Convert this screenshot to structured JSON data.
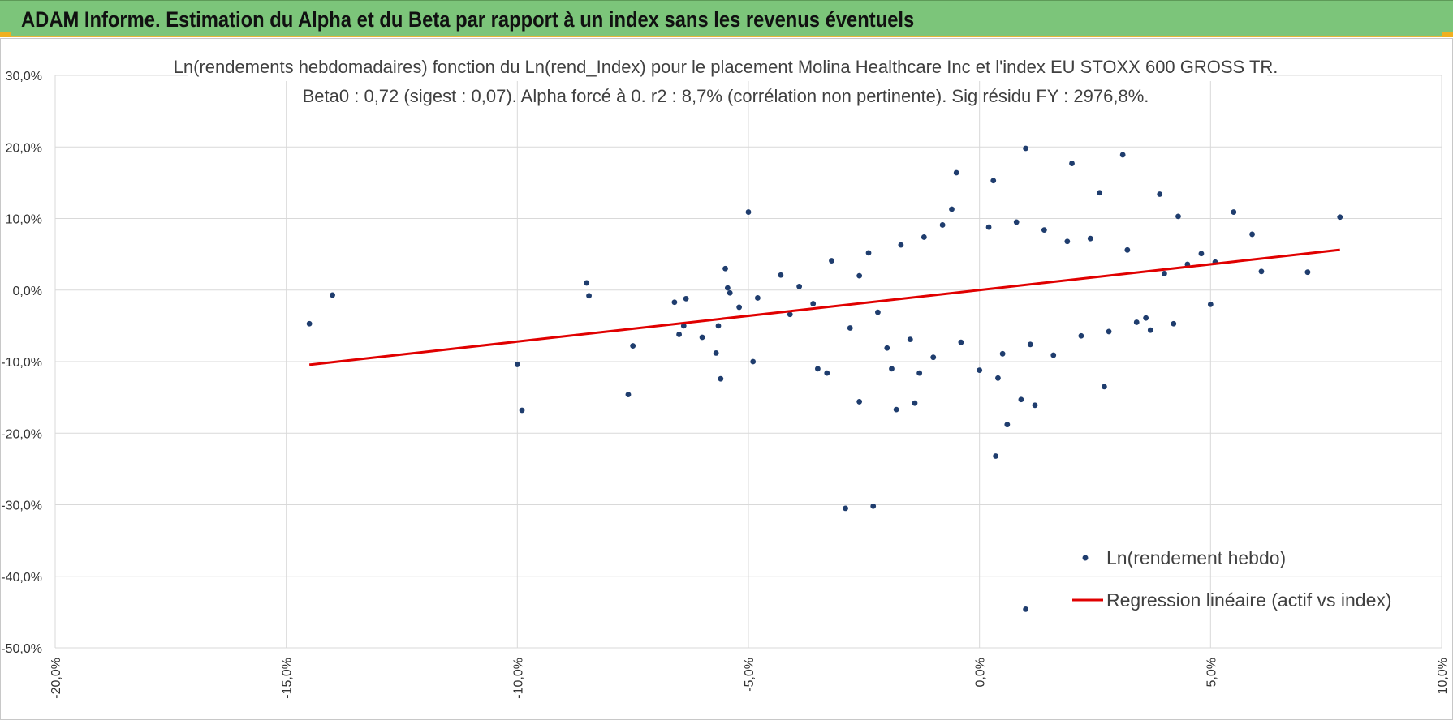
{
  "banner": {
    "title": "ADAM Informe. Estimation du Alpha et du Beta par rapport à un index sans les revenus éventuels",
    "color": "#7cc57a",
    "accent": "#f0b020"
  },
  "chart_data": {
    "type": "scatter",
    "title": "Ln(rendements hebdomadaires) fonction du Ln(rend_Index) pour le placement Molina Healthcare Inc et l'index EU STOXX 600 GROSS TR.",
    "subtitle": "Beta0 : 0,72 (sigest : 0,07).  Alpha forcé à 0. r2 : 8,7% (corrélation non pertinente). Sig résidu FY : 2976,8%.",
    "xlabel": "",
    "ylabel": "",
    "xlim": [
      -20,
      10
    ],
    "ylim": [
      -50,
      30
    ],
    "x_ticks": [
      "-20,0%",
      "-15,0%",
      "-10,0%",
      "-5,0%",
      "0,0%",
      "5,0%",
      "10,0%"
    ],
    "y_ticks": [
      "30,0%",
      "20,0%",
      "10,0%",
      "0,0%",
      "-10,0%",
      "-20,0%",
      "-30,0%",
      "-40,0%",
      "-50,0%"
    ],
    "grid": true,
    "legend_position": "bottom-right",
    "series": [
      {
        "name": "Ln(rendement hebdo)",
        "kind": "scatter",
        "color": "#1f3d6e",
        "points": [
          [
            -14.5,
            -4.7
          ],
          [
            -14.0,
            -0.7
          ],
          [
            -10.0,
            -10.4
          ],
          [
            -9.9,
            -16.8
          ],
          [
            -8.5,
            1.0
          ],
          [
            -8.45,
            -0.8
          ],
          [
            -7.6,
            -14.6
          ],
          [
            -7.5,
            -7.8
          ],
          [
            -6.6,
            -1.7
          ],
          [
            -6.5,
            -6.2
          ],
          [
            -6.4,
            -5.0
          ],
          [
            -6.35,
            -1.2
          ],
          [
            -6.0,
            -6.6
          ],
          [
            -5.7,
            -8.8
          ],
          [
            -5.65,
            -5.0
          ],
          [
            -5.6,
            -12.4
          ],
          [
            -5.5,
            3.0
          ],
          [
            -5.45,
            0.3
          ],
          [
            -5.4,
            -0.4
          ],
          [
            -5.0,
            10.9
          ],
          [
            -4.9,
            -10.0
          ],
          [
            -4.8,
            -1.1
          ],
          [
            -3.5,
            -11.0
          ],
          [
            -3.3,
            -11.6
          ],
          [
            -2.9,
            -30.5
          ],
          [
            -2.6,
            -15.6
          ],
          [
            -2.4,
            5.2
          ],
          [
            -2.3,
            -30.2
          ],
          [
            -1.9,
            -11.0
          ],
          [
            -1.8,
            -16.7
          ],
          [
            -1.4,
            -15.8
          ],
          [
            -1.3,
            -11.6
          ],
          [
            -0.5,
            16.4
          ],
          [
            -0.6,
            11.3
          ],
          [
            0.0,
            -11.2
          ],
          [
            0.3,
            15.3
          ],
          [
            0.35,
            -23.2
          ],
          [
            0.4,
            -12.3
          ],
          [
            0.6,
            -18.8
          ],
          [
            0.9,
            -15.3
          ],
          [
            1.0,
            19.8
          ],
          [
            1.0,
            -44.6
          ],
          [
            1.2,
            -16.1
          ],
          [
            2.0,
            17.7
          ],
          [
            2.6,
            13.6
          ],
          [
            2.7,
            -13.5
          ],
          [
            3.1,
            18.9
          ],
          [
            3.7,
            -5.6
          ],
          [
            3.9,
            13.4
          ],
          [
            4.2,
            -4.7
          ],
          [
            4.3,
            10.3
          ],
          [
            5.0,
            -2.0
          ],
          [
            5.5,
            10.9
          ],
          [
            5.9,
            7.8
          ],
          [
            6.1,
            2.6
          ],
          [
            7.1,
            2.5
          ],
          [
            7.8,
            10.2
          ],
          [
            4.0,
            2.3
          ],
          [
            3.4,
            -4.5
          ],
          [
            4.8,
            5.1
          ],
          [
            -4.3,
            2.1
          ],
          [
            -4.1,
            -3.4
          ],
          [
            -3.9,
            0.5
          ],
          [
            -3.6,
            -1.9
          ],
          [
            -3.2,
            4.1
          ],
          [
            -2.8,
            -5.3
          ],
          [
            -2.6,
            2.0
          ],
          [
            -2.2,
            -3.1
          ],
          [
            -2.0,
            -8.1
          ],
          [
            -1.7,
            6.3
          ],
          [
            -1.5,
            -6.9
          ],
          [
            -1.2,
            7.4
          ],
          [
            -1.0,
            -9.4
          ],
          [
            -0.8,
            9.1
          ],
          [
            -0.4,
            -7.3
          ],
          [
            0.2,
            8.8
          ],
          [
            0.5,
            -8.9
          ],
          [
            0.8,
            9.5
          ],
          [
            1.1,
            -7.6
          ],
          [
            1.4,
            8.4
          ],
          [
            1.6,
            -9.1
          ],
          [
            1.9,
            6.8
          ],
          [
            2.2,
            -6.4
          ],
          [
            2.4,
            7.2
          ],
          [
            2.8,
            -5.8
          ],
          [
            3.2,
            5.6
          ],
          [
            3.6,
            -3.9
          ],
          [
            4.5,
            3.6
          ],
          [
            5.1,
            3.9
          ],
          [
            -5.2,
            -2.4
          ]
        ]
      },
      {
        "name": "Regression linéaire (actif vs index)",
        "kind": "line",
        "color": "#e00000",
        "x": [
          -14.5,
          7.8
        ],
        "y": [
          -10.44,
          5.62
        ]
      }
    ]
  }
}
